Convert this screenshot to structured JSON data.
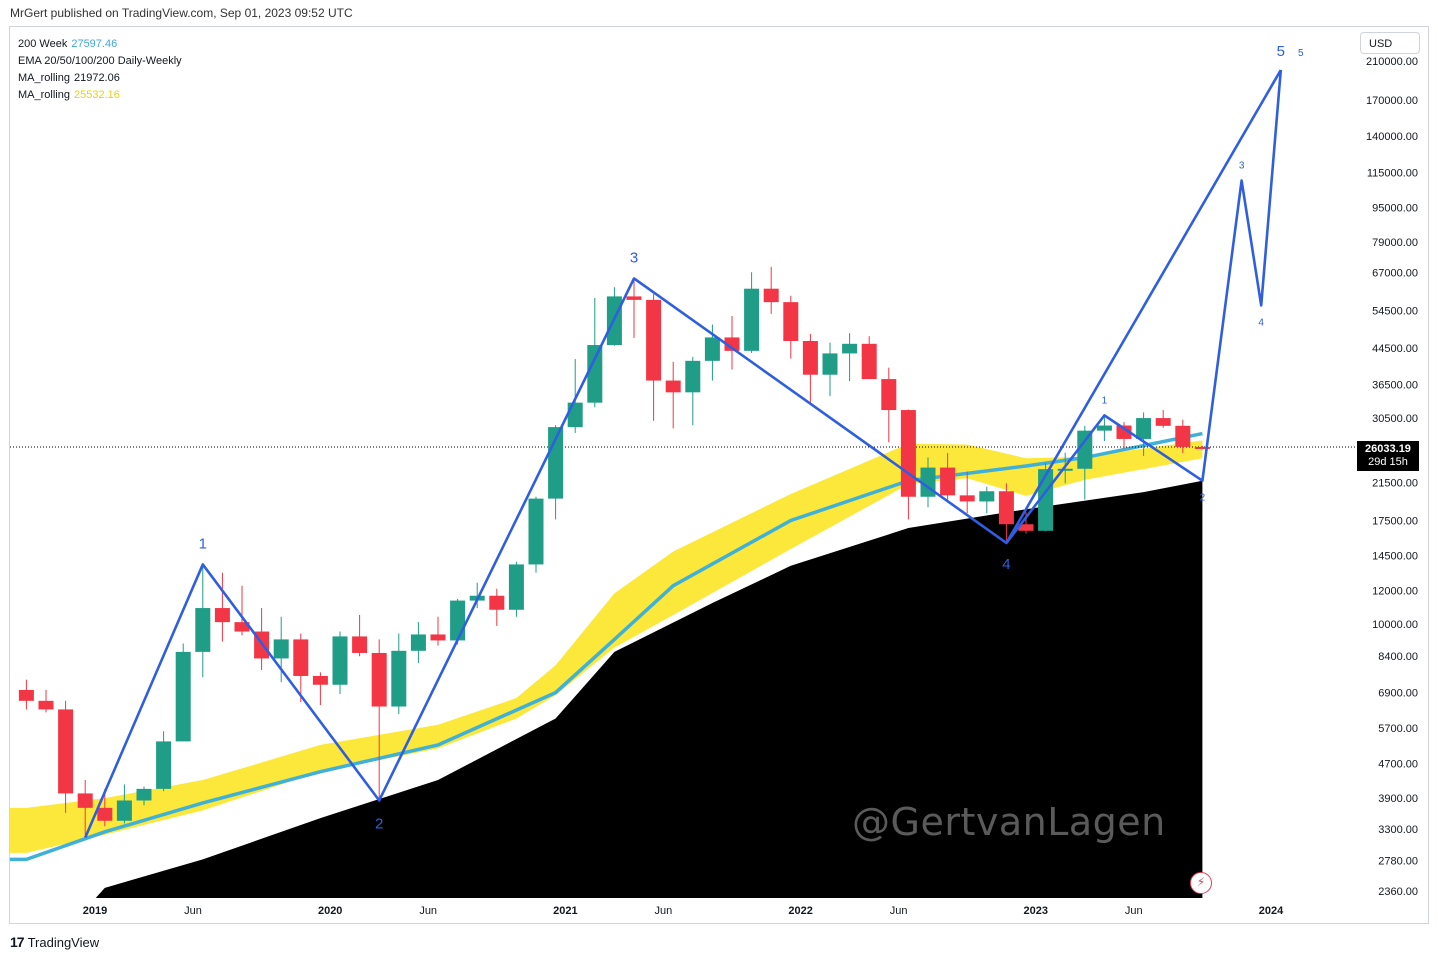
{
  "header": {
    "publisher_line": "MrGert published on TradingView.com, Sep 01, 2023 09:52 UTC"
  },
  "legend": [
    {
      "name": "200 Week",
      "value": "27597.46",
      "color": "#3fa8d6"
    },
    {
      "name": "EMA 20/50/100/200 Daily-Weekly",
      "value": "",
      "color": "#131722"
    },
    {
      "name": "MA_rolling",
      "value": "21972.06",
      "color": "#131722"
    },
    {
      "name": "MA_rolling",
      "value": "25532.16",
      "color": "#f5e000"
    }
  ],
  "currency_button": "USD",
  "watermark": "@GertvanLagen",
  "last_price": {
    "value": "26033.19",
    "countdown": "29d 15h"
  },
  "footer": {
    "brand": "TradingView",
    "logo": "17"
  },
  "icons": {
    "flash": "lightning-icon"
  },
  "colors": {
    "up": "#1f9d87",
    "down": "#f23645",
    "wave": "#2f5fe0",
    "yellow_band": "#fbe83a",
    "black_area": "#000000",
    "ema": "#3fb0d8"
  },
  "chart_data": {
    "type": "candlestick",
    "scale": "log",
    "interval": "1M",
    "y_ticks": [
      "210000.00",
      "170000.00",
      "140000.00",
      "115000.00",
      "95000.00",
      "79000.00",
      "67000.00",
      "54500.00",
      "44500.00",
      "36500.00",
      "30500.00",
      "21500.00",
      "17500.00",
      "14500.00",
      "12000.00",
      "10000.00",
      "8400.00",
      "6900.00",
      "5700.00",
      "4700.00",
      "3900.00",
      "3300.00",
      "2780.00",
      "2360.00"
    ],
    "x_ticks": [
      {
        "label": "2019",
        "date": "2019-01"
      },
      {
        "label": "Jun",
        "date": "2019-06"
      },
      {
        "label": "2020",
        "date": "2020-01"
      },
      {
        "label": "Jun",
        "date": "2020-06"
      },
      {
        "label": "2021",
        "date": "2021-01"
      },
      {
        "label": "Jun",
        "date": "2021-06"
      },
      {
        "label": "2022",
        "date": "2022-01"
      },
      {
        "label": "Jun",
        "date": "2022-06"
      },
      {
        "label": "2023",
        "date": "2023-01"
      },
      {
        "label": "Jun",
        "date": "2023-06"
      },
      {
        "label": "2024",
        "date": "2024-01"
      }
    ],
    "candles": [
      [
        "2018-09",
        7000,
        7400,
        6300,
        6600
      ],
      [
        "2018-10",
        6600,
        7000,
        6200,
        6300
      ],
      [
        "2018-11",
        6300,
        6600,
        3600,
        4000
      ],
      [
        "2018-12",
        4000,
        4300,
        3200,
        3700
      ],
      [
        "2019-01",
        3700,
        4100,
        3350,
        3450
      ],
      [
        "2019-02",
        3450,
        4200,
        3400,
        3850
      ],
      [
        "2019-03",
        3850,
        4150,
        3750,
        4100
      ],
      [
        "2019-04",
        4100,
        5600,
        4050,
        5300
      ],
      [
        "2019-05",
        5300,
        9000,
        5300,
        8600
      ],
      [
        "2019-06",
        8600,
        13800,
        7500,
        10900
      ],
      [
        "2019-07",
        10900,
        13200,
        9100,
        10100
      ],
      [
        "2019-08",
        10100,
        12300,
        9400,
        9600
      ],
      [
        "2019-09",
        9600,
        10900,
        7800,
        8300
      ],
      [
        "2019-10",
        8300,
        10400,
        7300,
        9200
      ],
      [
        "2019-11",
        9200,
        9500,
        6550,
        7550
      ],
      [
        "2019-12",
        7550,
        7700,
        6450,
        7200
      ],
      [
        "2020-01",
        7200,
        9600,
        6850,
        9350
      ],
      [
        "2020-02",
        9350,
        10500,
        8400,
        8550
      ],
      [
        "2020-03",
        8550,
        9200,
        3850,
        6400
      ],
      [
        "2020-04",
        6400,
        9500,
        6150,
        8650
      ],
      [
        "2020-05",
        8650,
        10100,
        8100,
        9450
      ],
      [
        "2020-06",
        9450,
        10400,
        8900,
        9150
      ],
      [
        "2020-07",
        9150,
        11450,
        8950,
        11350
      ],
      [
        "2020-08",
        11350,
        12500,
        10900,
        11650
      ],
      [
        "2020-09",
        11650,
        12100,
        9900,
        10800
      ],
      [
        "2020-10",
        10800,
        14000,
        10400,
        13800
      ],
      [
        "2020-11",
        13800,
        19900,
        13200,
        19700
      ],
      [
        "2020-12",
        19700,
        29300,
        17600,
        29000
      ],
      [
        "2021-01",
        29000,
        41900,
        28100,
        33100
      ],
      [
        "2021-02",
        33100,
        58300,
        32300,
        45200
      ],
      [
        "2021-03",
        45200,
        61800,
        45000,
        58800
      ],
      [
        "2021-04",
        58800,
        64800,
        47000,
        57700
      ],
      [
        "2021-05",
        57700,
        59500,
        30000,
        37300
      ],
      [
        "2021-06",
        37300,
        41300,
        28800,
        35000
      ],
      [
        "2021-07",
        35000,
        42400,
        29300,
        41500
      ],
      [
        "2021-08",
        41500,
        50500,
        37300,
        47100
      ],
      [
        "2021-09",
        47100,
        52900,
        39600,
        43800
      ],
      [
        "2021-10",
        43800,
        67000,
        43300,
        61300
      ],
      [
        "2021-11",
        61300,
        69000,
        53500,
        57000
      ],
      [
        "2021-12",
        57000,
        59000,
        42000,
        46200
      ],
      [
        "2022-01",
        46200,
        48000,
        32900,
        38500
      ],
      [
        "2022-02",
        38500,
        45800,
        34300,
        43200
      ],
      [
        "2022-03",
        43200,
        48200,
        37200,
        45500
      ],
      [
        "2022-04",
        45500,
        47400,
        37600,
        37600
      ],
      [
        "2022-05",
        37600,
        40000,
        26700,
        31800
      ],
      [
        "2022-06",
        31800,
        31900,
        17600,
        19900
      ],
      [
        "2022-07",
        19900,
        24600,
        18800,
        23300
      ],
      [
        "2022-08",
        23300,
        25200,
        19600,
        20050
      ],
      [
        "2022-09",
        20050,
        22800,
        18200,
        19400
      ],
      [
        "2022-10",
        19400,
        21000,
        18200,
        20500
      ],
      [
        "2022-11",
        20500,
        21400,
        15500,
        17150
      ],
      [
        "2022-12",
        17150,
        18300,
        16300,
        16550
      ],
      [
        "2023-01",
        16550,
        23900,
        16500,
        23100
      ],
      [
        "2023-02",
        23100,
        25250,
        21400,
        23150
      ],
      [
        "2023-03",
        23150,
        29200,
        19600,
        28450
      ],
      [
        "2023-04",
        28450,
        30900,
        26900,
        29250
      ],
      [
        "2023-05",
        29250,
        29800,
        25800,
        27200
      ],
      [
        "2023-06",
        27200,
        31400,
        24800,
        30450
      ],
      [
        "2023-07",
        30450,
        31800,
        28900,
        29200
      ],
      [
        "2023-08",
        29200,
        30200,
        25200,
        26050
      ],
      [
        "2023-09",
        26050,
        26200,
        25700,
        26033
      ]
    ],
    "black_area_200w": [
      [
        "2018-09",
        1500
      ],
      [
        "2019-01",
        2400
      ],
      [
        "2019-06",
        2800
      ],
      [
        "2019-12",
        3500
      ],
      [
        "2020-06",
        4300
      ],
      [
        "2020-12",
        6000
      ],
      [
        "2021-03",
        8600
      ],
      [
        "2021-08",
        11200
      ],
      [
        "2021-12",
        13700
      ],
      [
        "2022-06",
        16800
      ],
      [
        "2022-12",
        18600
      ],
      [
        "2023-06",
        20400
      ],
      [
        "2023-09",
        21700
      ]
    ],
    "yellow_band": [
      [
        "2018-09",
        3700,
        2900
      ],
      [
        "2019-01",
        3900,
        3200
      ],
      [
        "2019-06",
        4300,
        3650
      ],
      [
        "2019-12",
        5200,
        4500
      ],
      [
        "2020-06",
        5800,
        5100
      ],
      [
        "2020-10",
        6700,
        6000
      ],
      [
        "2020-12",
        8000,
        6800
      ],
      [
        "2021-03",
        11800,
        8800
      ],
      [
        "2021-06",
        14800,
        10500
      ],
      [
        "2021-12",
        20200,
        15000
      ],
      [
        "2022-06",
        26500,
        21300
      ],
      [
        "2022-09",
        26400,
        22000
      ],
      [
        "2022-12",
        24500,
        20000
      ],
      [
        "2023-03",
        24700,
        21800
      ],
      [
        "2023-09",
        27000,
        24500
      ]
    ],
    "ema_line": [
      [
        "2018-09",
        2800
      ],
      [
        "2019-01",
        3250
      ],
      [
        "2019-06",
        3800
      ],
      [
        "2019-12",
        4500
      ],
      [
        "2020-06",
        5200
      ],
      [
        "2020-12",
        6900
      ],
      [
        "2021-03",
        9200
      ],
      [
        "2021-06",
        12300
      ],
      [
        "2021-12",
        17500
      ],
      [
        "2022-06",
        21700
      ],
      [
        "2022-12",
        23500
      ],
      [
        "2023-03",
        24600
      ],
      [
        "2023-09",
        28000
      ]
    ],
    "waves_main": [
      {
        "date": "2018-12",
        "value": 3150,
        "label": ""
      },
      {
        "date": "2019-06",
        "value": 13800,
        "label": "1"
      },
      {
        "date": "2020-03",
        "value": 3850,
        "label": "2"
      },
      {
        "date": "2021-04",
        "value": 64800,
        "label": "3"
      },
      {
        "date": "2022-11",
        "value": 15500,
        "label": "4"
      },
      {
        "date": "2024-01",
        "value": 200000,
        "label": "5"
      }
    ],
    "waves_sub": [
      {
        "date": "2022-11",
        "value": 15500,
        "label": ""
      },
      {
        "date": "2023-04",
        "value": 30900,
        "label": "1"
      },
      {
        "date": "2023-09",
        "value": 21700,
        "label": "2"
      },
      {
        "date": "2023-11",
        "value": 110000,
        "label": "3"
      },
      {
        "date": "2023-12",
        "value": 56000,
        "label": "4"
      },
      {
        "date": "2024-01",
        "value": 200000,
        "label": "5"
      }
    ],
    "last_price_value": 26033.19
  }
}
